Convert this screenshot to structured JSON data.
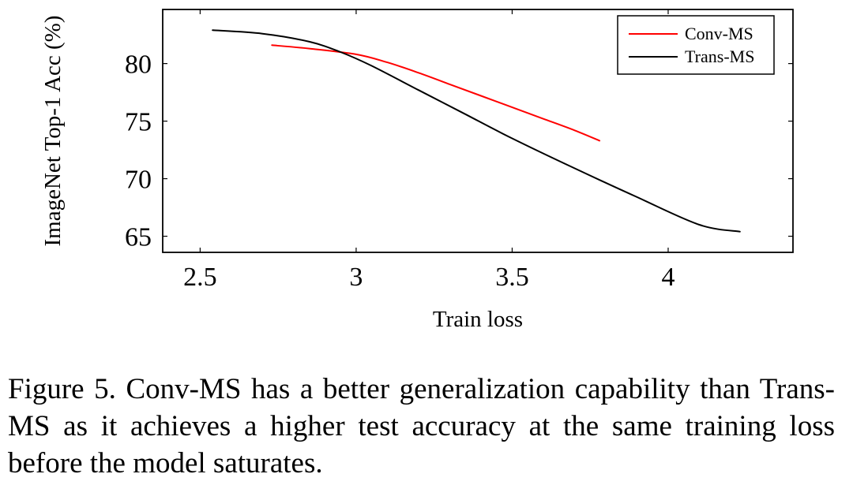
{
  "chart_data": {
    "type": "line",
    "title": "",
    "xlabel": "Train loss",
    "ylabel": "ImageNet Top-1 Acc (%)",
    "xlim": [
      2.38,
      4.4
    ],
    "ylim": [
      63.6,
      84.7
    ],
    "xticks": [
      2.5,
      3,
      3.5,
      4
    ],
    "xtick_labels": [
      "2.5",
      "3",
      "3.5",
      "4"
    ],
    "yticks": [
      65,
      70,
      75,
      80
    ],
    "ytick_labels": [
      "65",
      "70",
      "75",
      "80"
    ],
    "grid": false,
    "legend_position": "top-right",
    "series": [
      {
        "name": "Conv-MS",
        "color": "#ff0000",
        "x": [
          2.73,
          2.85,
          3.0,
          3.1,
          3.2,
          3.3,
          3.4,
          3.5,
          3.6,
          3.7,
          3.78
        ],
        "y": [
          81.6,
          81.3,
          80.8,
          80.1,
          79.2,
          78.2,
          77.2,
          76.2,
          75.2,
          74.2,
          73.3
        ]
      },
      {
        "name": "Trans-MS",
        "color": "#000000",
        "x": [
          2.54,
          2.7,
          2.85,
          2.95,
          3.05,
          3.2,
          3.35,
          3.5,
          3.7,
          3.9,
          4.1,
          4.23
        ],
        "y": [
          82.9,
          82.6,
          81.9,
          81.0,
          79.8,
          77.7,
          75.6,
          73.5,
          70.9,
          68.4,
          66.0,
          65.4
        ]
      }
    ]
  },
  "caption": "Figure 5.  Conv-MS has a better generalization capability than Trans-MS as it achieves a higher test accuracy at the same training loss before the model saturates."
}
